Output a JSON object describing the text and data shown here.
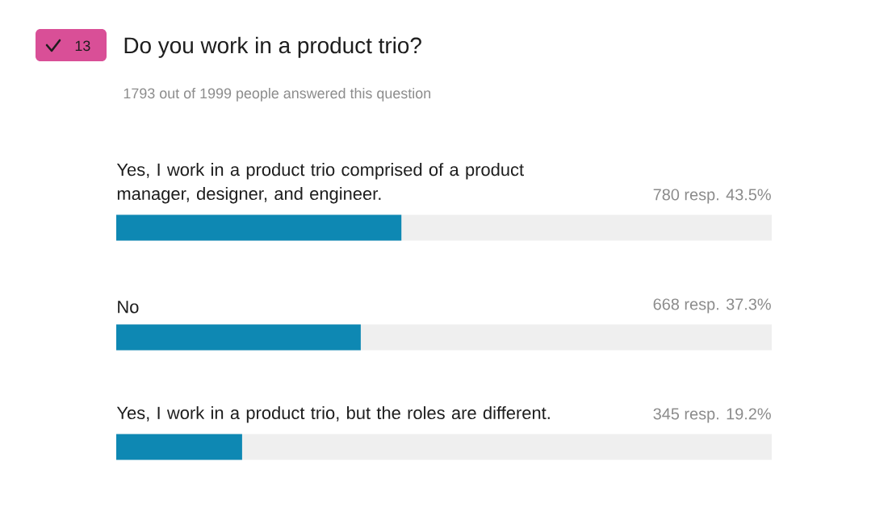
{
  "chart_data": {
    "type": "bar",
    "orientation": "horizontal",
    "title": "Do you work in a product trio?",
    "subtitle": "1793 out of 1999 people answered this question",
    "annotations": [
      "13"
    ],
    "categories": [
      "Yes, I work in a product trio comprised of a product manager, designer, and engineer.",
      "No",
      "Yes, I work in a product trio, but the roles are different."
    ],
    "values": [
      43.5,
      37.3,
      19.2
    ],
    "value_labels": [
      "780 resp.  43.5%",
      "668 resp.  37.3%",
      "345 resp.  19.2%"
    ],
    "color": "#0e88b3",
    "xlim": [
      0,
      100
    ],
    "tick_labels": false
  }
}
